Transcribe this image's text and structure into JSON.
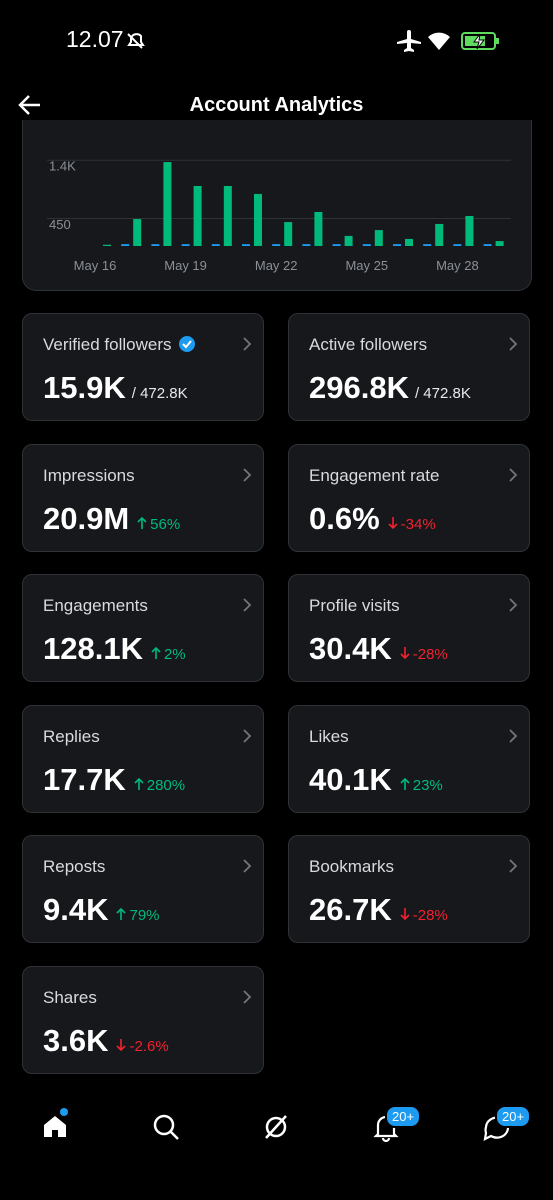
{
  "status_bar": {
    "time": "12.07"
  },
  "header": {
    "title": "Account Analytics"
  },
  "chart_data": {
    "type": "bar",
    "categories": [
      "May 16",
      null,
      null,
      "May 19",
      null,
      null,
      "May 22",
      null,
      null,
      "May 25",
      null,
      null,
      "May 28",
      null
    ],
    "series": [
      {
        "color": "#00ba7c",
        "values": [
          20,
          440,
          1370,
          980,
          980,
          850,
          390,
          555,
          165,
          260,
          115,
          360,
          490,
          80
        ]
      },
      {
        "color": "#1d9bf0",
        "values": [
          0,
          30,
          30,
          30,
          30,
          30,
          30,
          30,
          30,
          30,
          30,
          30,
          30,
          30
        ]
      }
    ],
    "ylim": [
      0,
      1600
    ],
    "yticks": [
      {
        "value": 1400,
        "label": "1.4K"
      },
      450
    ],
    "grid": true
  },
  "cards": [
    {
      "label": "Verified followers",
      "verified": true,
      "value": "15.9K",
      "sub": "/ 472.8K"
    },
    {
      "label": "Active followers",
      "value": "296.8K",
      "sub": "/ 472.8K"
    },
    {
      "label": "Impressions",
      "value": "20.9M",
      "change": "56%",
      "trend": "up"
    },
    {
      "label": "Engagement rate",
      "value": "0.6%",
      "change": "-34%",
      "trend": "down"
    },
    {
      "label": "Engagements",
      "value": "128.1K",
      "change": "2%",
      "trend": "up"
    },
    {
      "label": "Profile visits",
      "value": "30.4K",
      "change": "-28%",
      "trend": "down"
    },
    {
      "label": "Replies",
      "value": "17.7K",
      "change": "280%",
      "trend": "up"
    },
    {
      "label": "Likes",
      "value": "40.1K",
      "change": "23%",
      "trend": "up"
    },
    {
      "label": "Reposts",
      "value": "9.4K",
      "change": "79%",
      "trend": "up"
    },
    {
      "label": "Bookmarks",
      "value": "26.7K",
      "change": "-28%",
      "trend": "down"
    },
    {
      "label": "Shares",
      "value": "3.6K",
      "change": "-2.6%",
      "trend": "down"
    }
  ],
  "nav": {
    "badges": [
      "20+",
      "20+"
    ]
  }
}
